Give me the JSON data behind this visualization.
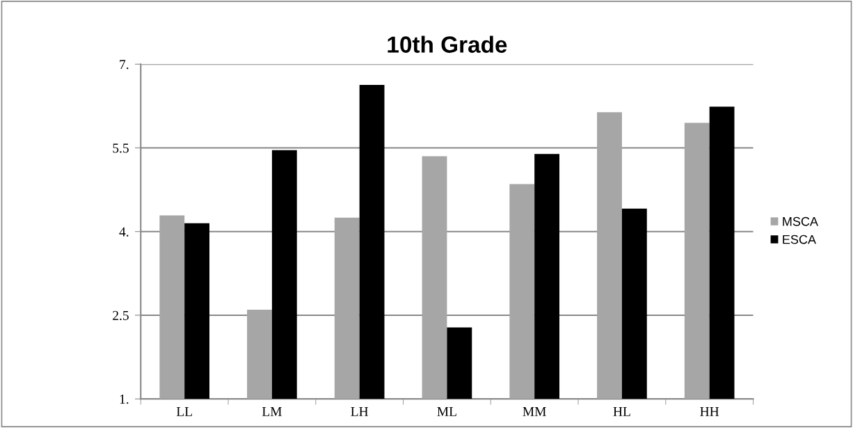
{
  "chart_data": {
    "type": "bar",
    "title": "10th Grade",
    "categories": [
      "LL",
      "LM",
      "LH",
      "ML",
      "MM",
      "HL",
      "HH"
    ],
    "series": [
      {
        "name": "MSCA",
        "color": "#a6a6a6",
        "values": [
          4.29,
          2.6,
          4.25,
          5.35,
          4.85,
          6.14,
          5.95
        ]
      },
      {
        "name": "ESCA",
        "color": "#000000",
        "values": [
          4.15,
          5.46,
          6.63,
          2.28,
          5.39,
          4.41,
          6.24
        ]
      }
    ],
    "ylim": [
      1,
      7
    ],
    "yticks": [
      {
        "value": 1,
        "label": "1."
      },
      {
        "value": 2.5,
        "label": "2.5"
      },
      {
        "value": 4,
        "label": "4."
      },
      {
        "value": 5.5,
        "label": "5.5"
      },
      {
        "value": 7,
        "label": "7."
      }
    ],
    "grid": "y",
    "legend": "right"
  }
}
